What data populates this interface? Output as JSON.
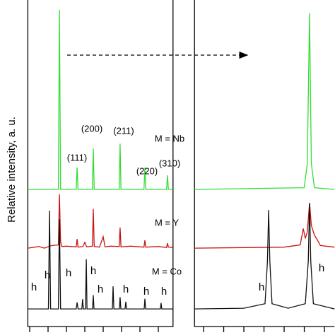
{
  "chart_data": [
    {
      "type": "line",
      "y_label": "Relative intensity, a. u.",
      "xlim": [
        -1,
        78
      ],
      "xticks": [
        0,
        10,
        20,
        30,
        40,
        50,
        60,
        70
      ],
      "ylim": [
        0,
        100
      ],
      "series": [
        {
          "name": "M = Nb",
          "color": "#33dd33",
          "x": [
            -1,
            15.6,
            16.2,
            16.8,
            25.3,
            25.8,
            26.3,
            34.1,
            34.6,
            35.1,
            48.7,
            49.2,
            49.7,
            62.2,
            62.7,
            63.2,
            74.5,
            75,
            75.5,
            78
          ],
          "values": [
            42,
            42,
            97,
            42,
            42,
            48.7,
            42,
            42,
            54.5,
            42,
            42,
            56,
            42,
            42,
            48.7,
            42,
            42,
            46.3,
            42,
            42
          ]
        },
        {
          "name": "M = Y",
          "color": "#cc1111",
          "x": [
            -1,
            5,
            8,
            12,
            15.6,
            16.2,
            16.8,
            17.5,
            20,
            25.3,
            25.8,
            26.3,
            29,
            30,
            31,
            34.1,
            34.6,
            35.1,
            38,
            40,
            41,
            44,
            48.7,
            49.2,
            49.7,
            55,
            62.2,
            62.7,
            63.2,
            70,
            74.5,
            75,
            75.5,
            78
          ],
          "values": [
            24,
            24.5,
            24,
            24.8,
            25,
            40.5,
            26,
            24.5,
            24.6,
            24.4,
            26.8,
            24.3,
            24.5,
            25.8,
            24.4,
            24.6,
            36,
            24.5,
            24.3,
            27.5,
            24.4,
            24.6,
            24.5,
            30.3,
            24.4,
            24.6,
            24.3,
            26.4,
            24.3,
            24.5,
            24.2,
            25.5,
            24.3,
            24.2
          ]
        },
        {
          "name": "M = Co",
          "color": "#111111",
          "x": [
            -1,
            10.2,
            10.8,
            11.4,
            15.6,
            16.2,
            16.8,
            25.3,
            25.8,
            26.3,
            28.4,
            28.8,
            29.2,
            30.4,
            30.8,
            31.2,
            34.2,
            34.6,
            35,
            45,
            45.4,
            45.8,
            48.8,
            49.2,
            49.6,
            51.9,
            52.3,
            52.7,
            62.3,
            62.7,
            63.1,
            71.1,
            71.5,
            71.9,
            78
          ],
          "values": [
            5.4,
            5.4,
            35.5,
            5.4,
            5.4,
            32.9,
            5.4,
            5.4,
            7.4,
            5.4,
            5.4,
            8.4,
            5.4,
            5.4,
            20.6,
            5.4,
            5.4,
            9.6,
            5.4,
            5.4,
            12.3,
            5.4,
            5.4,
            9,
            5.4,
            5.4,
            7.6,
            5.4,
            5.4,
            8.5,
            5.4,
            5.4,
            7.2,
            5.4,
            5.4
          ]
        }
      ],
      "annotations": [
        "(111)",
        "(200)",
        "(211)",
        "(220)",
        "(310)",
        "h",
        "h",
        "h",
        "h",
        "h",
        "h",
        "h",
        "h"
      ]
    },
    {
      "type": "line",
      "xlim": [
        -4.5,
        65
      ],
      "xticks": [
        0,
        10,
        20,
        30,
        40,
        50,
        60
      ],
      "ylim": [
        0,
        100
      ],
      "series": [
        {
          "color": "#33dd33",
          "x": [
            -4.5,
            50,
            51.5,
            52.6,
            53.5,
            55,
            65
          ],
          "values": [
            42,
            42.5,
            50,
            96,
            50,
            42.5,
            42
          ]
        },
        {
          "color": "#cc1111",
          "x": [
            -4.5,
            40,
            48,
            49.5,
            50.5,
            51.5,
            52.6,
            53.5,
            55,
            56.5,
            58,
            65
          ],
          "values": [
            24,
            24.3,
            25,
            30,
            27,
            29,
            37.9,
            31,
            28,
            26.5,
            24.8,
            24.3
          ]
        },
        {
          "color": "#111111",
          "x": [
            -4.5,
            20,
            30.5,
            31.7,
            32.3,
            32.9,
            34,
            42,
            50.5,
            52,
            52.6,
            53.2,
            54.5,
            65
          ],
          "values": [
            5.4,
            5.6,
            7,
            20,
            35.7,
            20,
            7,
            5.6,
            7,
            20,
            37.7,
            20,
            7,
            5.4
          ]
        }
      ],
      "annotations": [
        "h",
        "h"
      ]
    }
  ]
}
